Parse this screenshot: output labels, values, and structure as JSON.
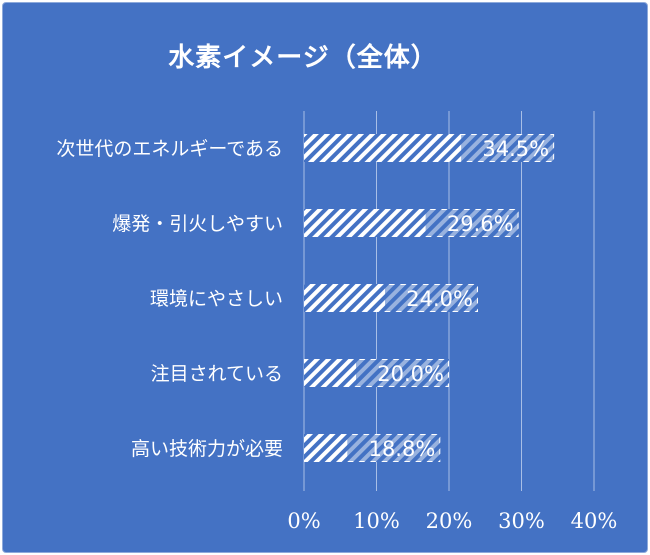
{
  "chart_data": {
    "type": "bar",
    "orientation": "horizontal",
    "title": "水素イメージ（全体）",
    "categories": [
      "次世代のエネルギーである",
      "爆発・引火しやすい",
      "環境にやさしい",
      "注目されている",
      "高い技術力が必要"
    ],
    "values": [
      34.5,
      29.6,
      24.0,
      20.0,
      18.8
    ],
    "value_labels": [
      "34.5%",
      "29.6%",
      "24.0%",
      "20.0%",
      "18.8%"
    ],
    "xlim": [
      0,
      40
    ],
    "x_ticks": [
      "0%",
      "10%",
      "20%",
      "30%",
      "40%"
    ],
    "grid": true,
    "legend": "none",
    "colors": {
      "background": "#4472c4",
      "bar_stripe": "#ffffff",
      "gridline": "#a9bfe6",
      "text": "#ffffff"
    }
  }
}
